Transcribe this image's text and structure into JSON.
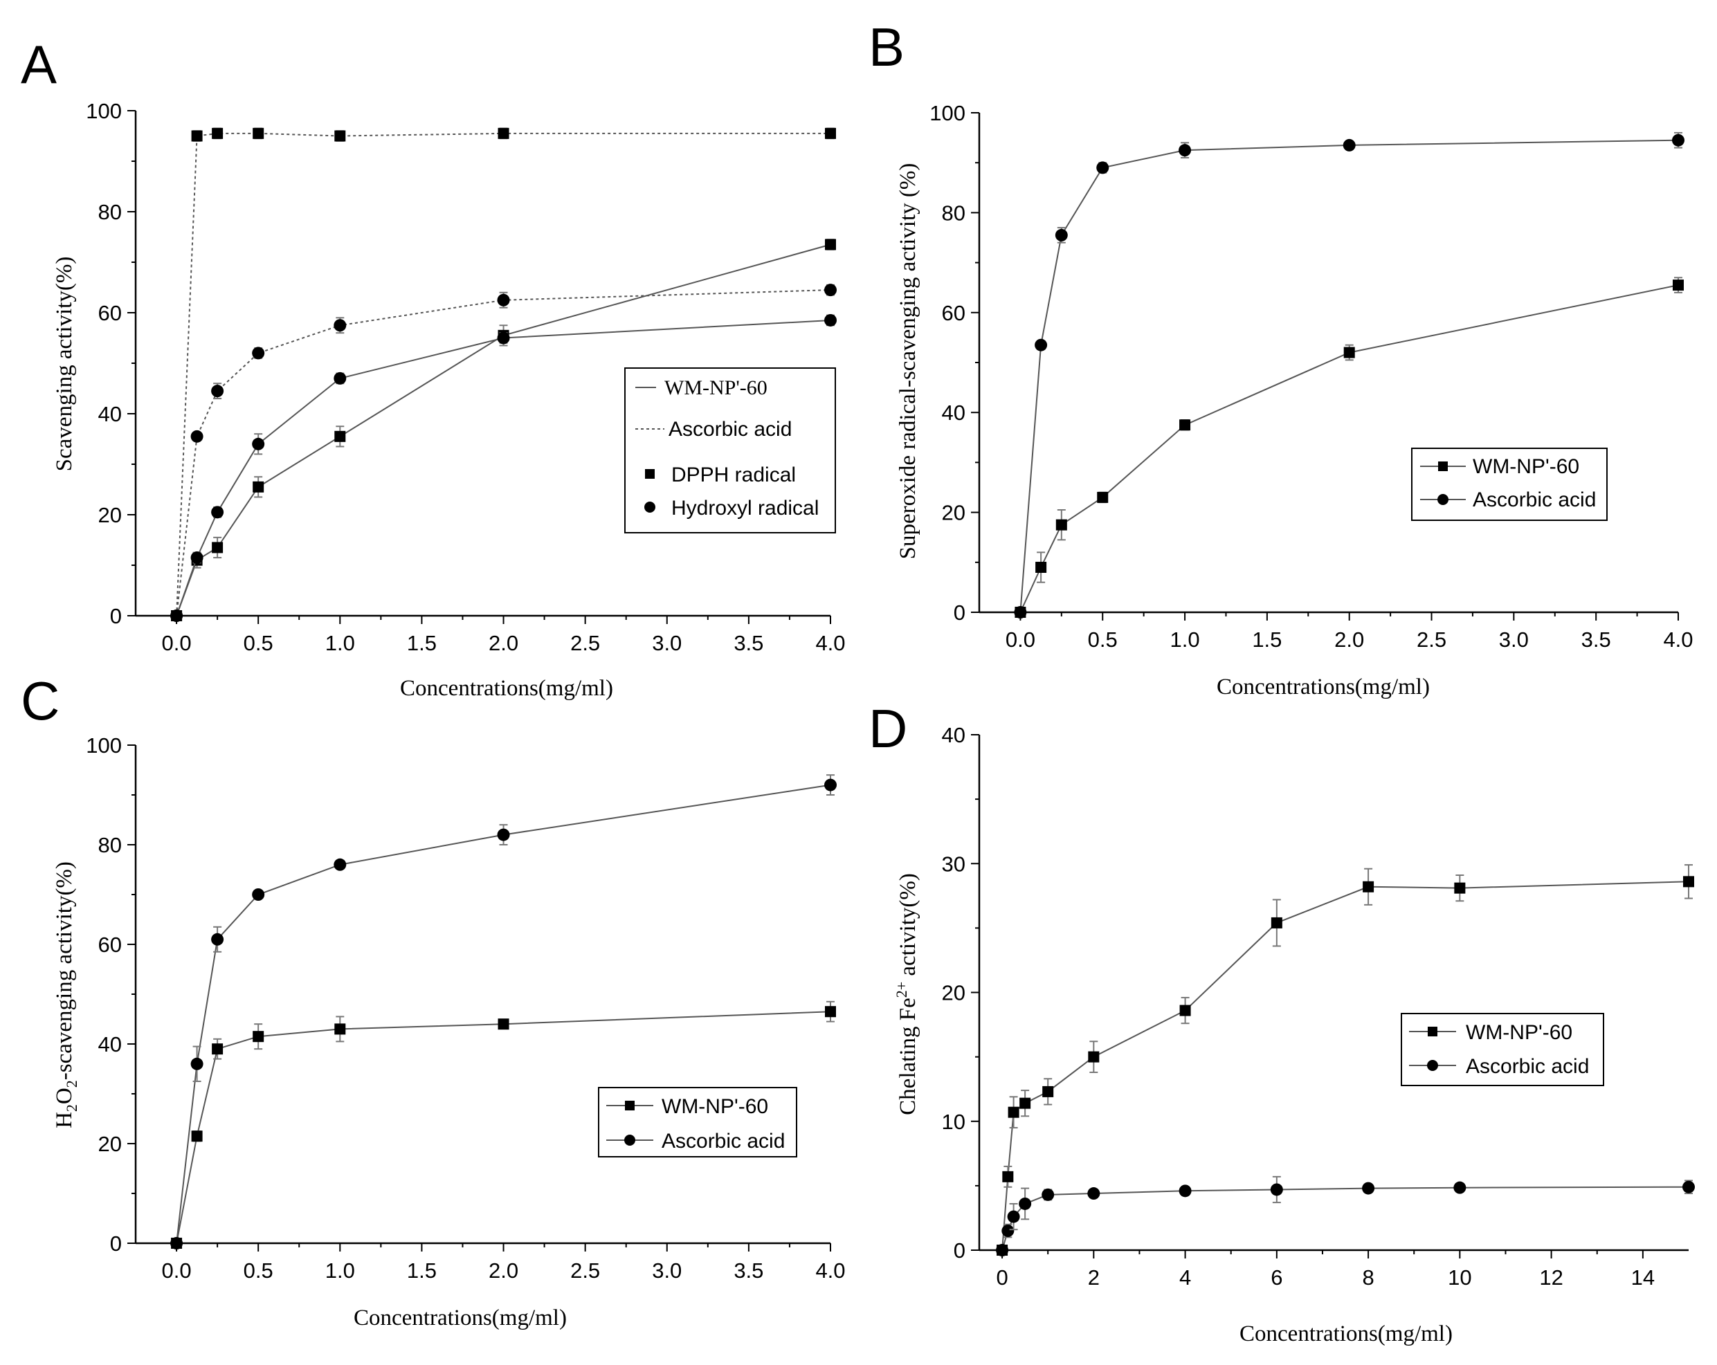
{
  "chart_data": [
    {
      "panel": "A",
      "type": "line",
      "xlabel": "Concentrations(mg/ml)",
      "ylabel": "Scavenging activity(%)",
      "xlim": [
        -0.25,
        4.0
      ],
      "ylim": [
        0,
        100
      ],
      "xticks": [
        "0.0",
        "0.5",
        "1.0",
        "1.5",
        "2.0",
        "2.5",
        "3.0",
        "3.5",
        "4.0"
      ],
      "yticks": [
        "0",
        "20",
        "40",
        "60",
        "80",
        "100"
      ],
      "legend": {
        "position": "center-right",
        "entries": [
          {
            "label": "WM-NP'-60",
            "style": "solid-line"
          },
          {
            "label": "Ascorbic acid",
            "style": "dotted-line"
          },
          {
            "label": "DPPH radical",
            "marker": "square"
          },
          {
            "label": "Hydroxyl radical",
            "marker": "circle"
          }
        ]
      },
      "series": [
        {
          "name": "WM-NP'-60 DPPH radical",
          "line": "solid",
          "marker": "square",
          "x": [
            0,
            0.125,
            0.25,
            0.5,
            1,
            2,
            4
          ],
          "y": [
            0,
            11,
            13.5,
            25.5,
            35.5,
            55.5,
            73.5
          ],
          "err": [
            0,
            1.5,
            2,
            2,
            2,
            2,
            1
          ]
        },
        {
          "name": "WM-NP'-60 Hydroxyl radical",
          "line": "solid",
          "marker": "circle",
          "x": [
            0,
            0.125,
            0.25,
            0.5,
            1,
            2,
            4
          ],
          "y": [
            0,
            11.5,
            20.5,
            34,
            47,
            55,
            58.5
          ],
          "err": [
            0,
            1,
            1,
            2,
            1,
            1,
            1
          ]
        },
        {
          "name": "Ascorbic acid DPPH radical",
          "line": "dotted",
          "marker": "square",
          "x": [
            0,
            0.125,
            0.25,
            0.5,
            1,
            2,
            4
          ],
          "y": [
            0,
            95,
            95.5,
            95.5,
            95,
            95.5,
            95.5
          ],
          "err": [
            0,
            1,
            1,
            1,
            1,
            1,
            1
          ]
        },
        {
          "name": "Ascorbic acid Hydroxyl radical",
          "line": "dotted",
          "marker": "circle",
          "x": [
            0,
            0.125,
            0.25,
            0.5,
            1,
            2,
            4
          ],
          "y": [
            0,
            35.5,
            44.5,
            52,
            57.5,
            62.5,
            64.5
          ],
          "err": [
            0,
            0.5,
            1.5,
            1,
            1.5,
            1.5,
            1
          ]
        }
      ]
    },
    {
      "panel": "B",
      "type": "line",
      "xlabel": "Concentrations(mg/ml)",
      "ylabel": "Superoxide radical-scavenging activity (%)",
      "xlim": [
        -0.25,
        4.0
      ],
      "ylim": [
        0,
        100
      ],
      "xticks": [
        "0.0",
        "0.5",
        "1.0",
        "1.5",
        "2.0",
        "2.5",
        "3.0",
        "3.5",
        "4.0"
      ],
      "yticks": [
        "0",
        "20",
        "40",
        "60",
        "80",
        "100"
      ],
      "legend": {
        "position": "center-right",
        "entries": [
          {
            "label": "WM-NP'-60",
            "marker": "square"
          },
          {
            "label": "Ascorbic acid",
            "marker": "circle"
          }
        ]
      },
      "series": [
        {
          "name": "WM-NP'-60",
          "line": "solid",
          "marker": "square",
          "x": [
            0,
            0.125,
            0.25,
            0.5,
            1,
            2,
            4
          ],
          "y": [
            0,
            9,
            17.5,
            23,
            37.5,
            52,
            65.5
          ],
          "err": [
            0,
            3,
            3,
            1,
            1,
            1.5,
            1.5
          ]
        },
        {
          "name": "Ascorbic acid",
          "line": "solid",
          "marker": "circle",
          "x": [
            0,
            0.125,
            0.25,
            0.5,
            1,
            2,
            4
          ],
          "y": [
            0,
            53.5,
            75.5,
            89,
            92.5,
            93.5,
            94.5
          ],
          "err": [
            0,
            0.5,
            1.5,
            1,
            1.5,
            0.5,
            1.5
          ]
        }
      ]
    },
    {
      "panel": "C",
      "type": "line",
      "xlabel": "Concentrations(mg/ml)",
      "ylabel_parts": [
        "H",
        "2",
        "O",
        "2",
        "-scavenging activity(%)"
      ],
      "xlim": [
        -0.25,
        4.0
      ],
      "ylim": [
        0,
        100
      ],
      "xticks": [
        "0.0",
        "0.5",
        "1.0",
        "1.5",
        "2.0",
        "2.5",
        "3.0",
        "3.5",
        "4.0"
      ],
      "yticks": [
        "0",
        "20",
        "40",
        "60",
        "80",
        "100"
      ],
      "legend": {
        "position": "lower-right",
        "entries": [
          {
            "label": "WM-NP'-60",
            "marker": "square"
          },
          {
            "label": "Ascorbic acid",
            "marker": "circle"
          }
        ]
      },
      "series": [
        {
          "name": "WM-NP'-60",
          "line": "solid",
          "marker": "square",
          "x": [
            0,
            0.125,
            0.25,
            0.5,
            1,
            2,
            4
          ],
          "y": [
            0,
            21.5,
            39,
            41.5,
            43,
            44,
            46.5
          ],
          "err": [
            0,
            1,
            2,
            2.5,
            2.5,
            0.5,
            2
          ]
        },
        {
          "name": "Ascorbic acid",
          "line": "solid",
          "marker": "circle",
          "x": [
            0,
            0.125,
            0.25,
            0.5,
            1,
            2,
            4
          ],
          "y": [
            0,
            36,
            61,
            70,
            76,
            82,
            92
          ],
          "err": [
            0,
            3.5,
            2.5,
            0.5,
            0.5,
            2,
            2
          ]
        }
      ]
    },
    {
      "panel": "D",
      "type": "line",
      "xlabel": "Concentrations(mg/ml)",
      "ylabel_parts": [
        "Chelating Fe",
        "2+",
        " activity(%)"
      ],
      "xlim": [
        -0.5,
        15
      ],
      "ylim": [
        0,
        40
      ],
      "xticks": [
        "0",
        "2",
        "4",
        "6",
        "8",
        "10",
        "12",
        "14"
      ],
      "yticks": [
        "0",
        "10",
        "20",
        "30",
        "40"
      ],
      "legend": {
        "position": "center-right",
        "entries": [
          {
            "label": "WM-NP'-60",
            "marker": "square"
          },
          {
            "label": "Ascorbic acid",
            "marker": "circle"
          }
        ]
      },
      "series": [
        {
          "name": "WM-NP'-60",
          "line": "solid",
          "marker": "square",
          "x": [
            0,
            0.125,
            0.25,
            0.5,
            1,
            2,
            4,
            6,
            8,
            10,
            15
          ],
          "y": [
            0,
            5.7,
            10.7,
            11.4,
            12.3,
            15,
            18.6,
            25.4,
            28.2,
            28.1,
            28.6
          ],
          "err": [
            0,
            0.8,
            1.2,
            1,
            1,
            1.2,
            1,
            1.8,
            1.4,
            1,
            1.3
          ]
        },
        {
          "name": "Ascorbic acid",
          "line": "solid",
          "marker": "circle",
          "x": [
            0,
            0.125,
            0.25,
            0.5,
            1,
            2,
            4,
            6,
            8,
            10,
            15
          ],
          "y": [
            0,
            1.5,
            2.6,
            3.6,
            4.3,
            4.4,
            4.6,
            4.7,
            4.8,
            4.85,
            4.9
          ],
          "err": [
            0,
            0.5,
            1,
            1.2,
            0.4,
            0.3,
            0.3,
            1,
            0.3,
            0.3,
            0.5
          ]
        }
      ]
    }
  ]
}
